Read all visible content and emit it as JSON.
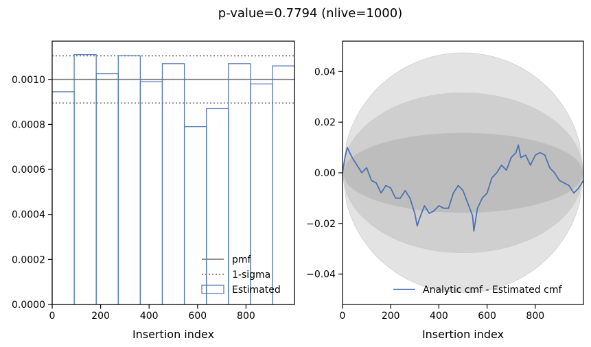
{
  "figure": {
    "suptitle": "p-value=0.7794 (nlive=1000)"
  },
  "chart_data": [
    {
      "type": "step",
      "xlabel": "Insertion index",
      "ylabel": "",
      "xlim": [
        0,
        1000
      ],
      "ylim": [
        0,
        0.00117
      ],
      "xticks": [
        0,
        200,
        400,
        600,
        800
      ],
      "xtick_labels": [
        "0",
        "200",
        "400",
        "600",
        "800"
      ],
      "yticks": [
        0,
        0.0002,
        0.0004,
        0.0006,
        0.0008,
        0.001
      ],
      "ytick_labels": [
        "0.0000",
        "0.0002",
        "0.0004",
        "0.0006",
        "0.0008",
        "0.0010"
      ],
      "grid": false,
      "legend_position": "lower-right",
      "pmf": {
        "label": "pmf",
        "value": 0.001,
        "color": "#808080"
      },
      "sigma": {
        "label": "1-sigma",
        "values": [
          0.000895,
          0.001105
        ],
        "color": "#808080"
      },
      "histogram": {
        "label": "Estimated",
        "color": "#4C72B0",
        "bin_edges": [
          0,
          90.9,
          181.8,
          272.7,
          363.6,
          454.5,
          545.5,
          636.4,
          727.3,
          818.2,
          909.1,
          1000
        ],
        "values": [
          0.000945,
          0.00111,
          0.001025,
          0.001105,
          0.00099,
          0.00107,
          0.00079,
          0.00087,
          0.00107,
          0.00098,
          0.00106
        ]
      }
    },
    {
      "type": "line",
      "xlabel": "Insertion index",
      "ylabel": "",
      "xlim": [
        0,
        1000
      ],
      "ylim": [
        -0.052,
        0.052
      ],
      "xticks": [
        0,
        200,
        400,
        600,
        800
      ],
      "xtick_labels": [
        "0",
        "200",
        "400",
        "600",
        "800"
      ],
      "yticks": [
        -0.04,
        -0.02,
        0,
        0.02,
        0.04
      ],
      "ytick_labels": [
        "−0.04",
        "−0.02",
        "0.00",
        "0.02",
        "0.04"
      ],
      "grid": false,
      "legend_position": "lower-right",
      "sigma_bands": {
        "amplitudes": [
          0.0158,
          0.0316,
          0.0474
        ],
        "colors": [
          "#bdbdbd",
          "#cfcfcf",
          "#e3e3e3"
        ]
      },
      "series": [
        {
          "name": "Analytic cmf - Estimated cmf",
          "color": "#4C72B0",
          "x": [
            0,
            10,
            20,
            30,
            40,
            60,
            80,
            100,
            120,
            140,
            160,
            180,
            200,
            220,
            240,
            260,
            280,
            300,
            310,
            320,
            340,
            360,
            380,
            400,
            420,
            440,
            460,
            480,
            500,
            520,
            540,
            545,
            560,
            580,
            600,
            620,
            640,
            660,
            680,
            700,
            720,
            730,
            740,
            760,
            780,
            800,
            820,
            840,
            860,
            880,
            900,
            920,
            940,
            960,
            980,
            1000
          ],
          "y": [
            0.0,
            0.006,
            0.01,
            0.008,
            0.006,
            0.003,
            0.0,
            0.002,
            -0.003,
            -0.004,
            -0.008,
            -0.005,
            -0.006,
            -0.01,
            -0.01,
            -0.007,
            -0.01,
            -0.016,
            -0.021,
            -0.018,
            -0.013,
            -0.016,
            -0.015,
            -0.013,
            -0.014,
            -0.014,
            -0.008,
            -0.005,
            -0.007,
            -0.012,
            -0.017,
            -0.023,
            -0.014,
            -0.01,
            -0.008,
            -0.002,
            0.0,
            0.003,
            0.001,
            0.006,
            0.008,
            0.011,
            0.006,
            0.007,
            0.003,
            0.007,
            0.008,
            0.007,
            0.002,
            0.0,
            -0.003,
            -0.004,
            -0.005,
            -0.008,
            -0.006,
            -0.003
          ]
        }
      ]
    }
  ]
}
